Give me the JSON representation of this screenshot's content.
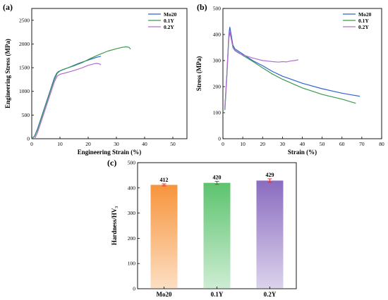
{
  "colors": {
    "mo20": "#2f63d4",
    "y01": "#3a9a50",
    "y02": "#b36fd0",
    "bar_mo20": "#f7943b",
    "bar_y01": "#5cc36e",
    "bar_y02": "#8a6cc0",
    "axis": "#000000"
  },
  "chart_data": [
    {
      "panel_label": "(a)",
      "type": "line",
      "xlabel": "Engineering Strain (%)",
      "ylabel": "Engineering Stress (MPa)",
      "xlim": [
        0,
        55
      ],
      "ylim": [
        0,
        2750
      ],
      "xticks": [
        0,
        10,
        20,
        30,
        40,
        50
      ],
      "yticks": [
        0,
        500,
        1000,
        1500,
        2000,
        2500
      ],
      "grid": false,
      "legend_position": "top-right",
      "series": [
        {
          "name": "Mo20",
          "color_key": "mo20",
          "x": [
            0,
            1,
            2,
            3,
            4,
            5,
            6,
            7,
            8,
            8.8,
            9.5,
            11,
            13,
            15,
            17,
            19,
            21,
            23,
            24.5
          ],
          "y": [
            0,
            60,
            200,
            380,
            560,
            740,
            920,
            1100,
            1280,
            1380,
            1420,
            1460,
            1500,
            1550,
            1600,
            1640,
            1680,
            1720,
            1740
          ]
        },
        {
          "name": "0.1Y",
          "color_key": "y01",
          "x": [
            0,
            1,
            2,
            3,
            4,
            5,
            6,
            7,
            8,
            9,
            10,
            12,
            15,
            18,
            21,
            24,
            27,
            30,
            32,
            33.5,
            34.5,
            35
          ],
          "y": [
            0,
            50,
            180,
            360,
            540,
            720,
            900,
            1080,
            1250,
            1380,
            1430,
            1480,
            1540,
            1610,
            1700,
            1780,
            1850,
            1900,
            1930,
            1940,
            1930,
            1890
          ]
        },
        {
          "name": "0.2Y",
          "color_key": "y02",
          "x": [
            1,
            2,
            3,
            4,
            5,
            6,
            7,
            8,
            9,
            10,
            12,
            15,
            18,
            20,
            22,
            23,
            24,
            24.5
          ],
          "y": [
            0,
            120,
            300,
            480,
            660,
            840,
            1020,
            1200,
            1320,
            1360,
            1390,
            1440,
            1500,
            1550,
            1580,
            1590,
            1580,
            1560
          ]
        }
      ]
    },
    {
      "panel_label": "(b)",
      "type": "line",
      "xlabel": "Strain (%)",
      "ylabel": "Stress (MPa)",
      "xlim": [
        0,
        80
      ],
      "ylim": [
        0,
        500
      ],
      "xticks": [
        0,
        10,
        20,
        30,
        40,
        50,
        60,
        70,
        80
      ],
      "yticks": [
        0,
        100,
        200,
        300,
        400,
        500
      ],
      "grid": false,
      "legend_position": "top-right",
      "series": [
        {
          "name": "Mo20",
          "color_key": "mo20",
          "x": [
            1,
            2,
            3,
            3.5,
            4,
            5,
            6,
            8,
            10,
            15,
            20,
            25,
            30,
            40,
            50,
            60,
            65,
            69
          ],
          "y": [
            120,
            250,
            400,
            428,
            405,
            360,
            345,
            335,
            325,
            300,
            280,
            258,
            240,
            213,
            192,
            175,
            168,
            163
          ]
        },
        {
          "name": "0.1Y",
          "color_key": "y01",
          "x": [
            1,
            2,
            3,
            3.5,
            4,
            5,
            6,
            8,
            10,
            15,
            20,
            25,
            30,
            40,
            50,
            60,
            67
          ],
          "y": [
            110,
            240,
            385,
            408,
            390,
            355,
            340,
            330,
            320,
            297,
            272,
            248,
            228,
            195,
            170,
            152,
            136
          ]
        },
        {
          "name": "0.2Y",
          "color_key": "y02",
          "x": [
            1,
            2,
            3,
            3.5,
            4,
            5,
            6,
            8,
            10,
            15,
            20,
            25,
            28,
            30,
            32,
            34,
            36,
            38
          ],
          "y": [
            120,
            250,
            395,
            415,
            390,
            350,
            338,
            328,
            322,
            310,
            300,
            296,
            294,
            296,
            295,
            298,
            300,
            303
          ]
        }
      ]
    },
    {
      "panel_label": "(c)",
      "type": "bar",
      "xlabel": "",
      "ylabel": "Hardness/HV₃",
      "ylim": [
        0,
        500
      ],
      "yticks": [
        0,
        100,
        200,
        300,
        400,
        500
      ],
      "grid": false,
      "categories": [
        "Mo20",
        "0.1Y",
        "0.2Y"
      ],
      "values": [
        412,
        420,
        429
      ],
      "errors": [
        4,
        6,
        7
      ],
      "data_labels": [
        "412",
        "420",
        "429"
      ],
      "color_keys": [
        "bar_mo20",
        "bar_y01",
        "bar_y02"
      ],
      "error_color": "#e0303a"
    }
  ]
}
